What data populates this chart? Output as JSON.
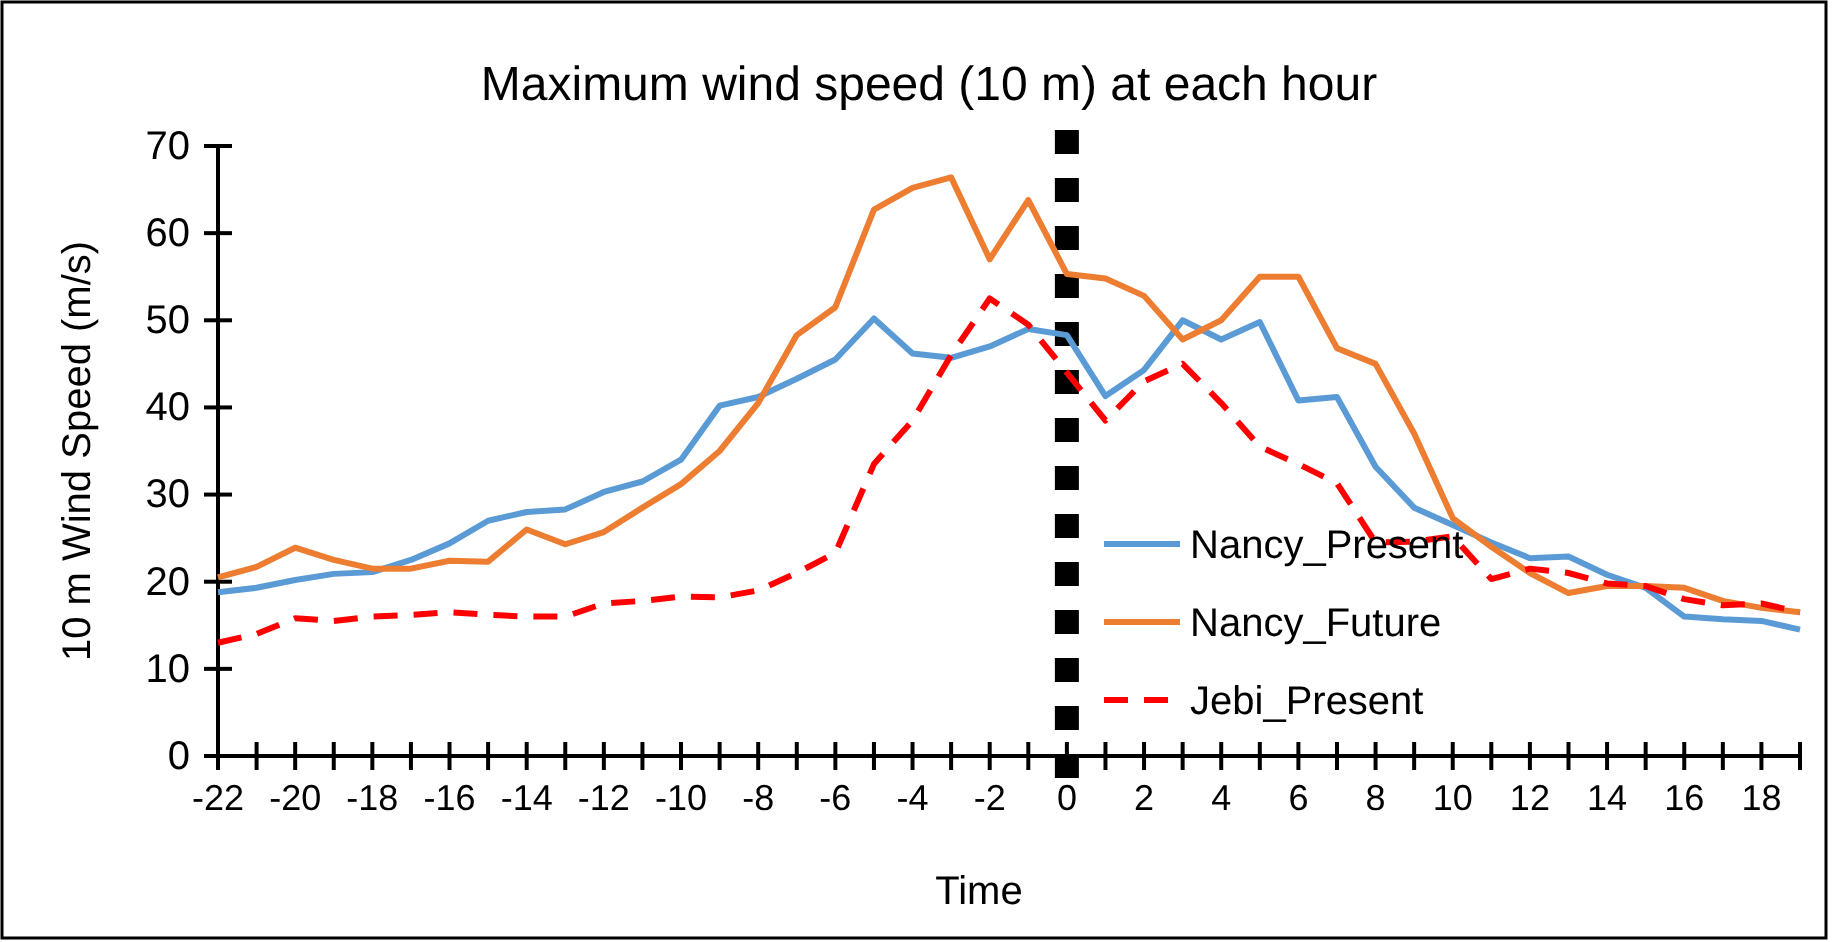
{
  "chart_data": {
    "type": "line",
    "title": "Maximum wind speed (10 m) at each hour",
    "xlabel": "Time",
    "ylabel": "10 m Wind Speed (m/s)",
    "x": [
      -22,
      -21,
      -20,
      -19,
      -18,
      -17,
      -16,
      -15,
      -14,
      -13,
      -12,
      -11,
      -10,
      -9,
      -8,
      -7,
      -6,
      -5,
      -4,
      -3,
      -2,
      -1,
      0,
      1,
      2,
      3,
      4,
      5,
      6,
      7,
      8,
      9,
      10,
      11,
      12,
      13,
      14,
      15,
      16,
      17,
      18,
      19
    ],
    "series": [
      {
        "name": "Nancy_Present",
        "color": "#5b9bd5",
        "line_style": "solid",
        "values": [
          18.8,
          19.3,
          20.2,
          20.9,
          21.1,
          22.5,
          24.4,
          27,
          28,
          28.3,
          30.3,
          31.5,
          34,
          40.2,
          41.2,
          43.3,
          45.5,
          50.2,
          46.2,
          45.7,
          47,
          49,
          48.3,
          41.3,
          44.3,
          50,
          47.8,
          49.8,
          40.8,
          41.2,
          33.2,
          28.5,
          26.5,
          24.5,
          22.7,
          22.9,
          20.8,
          19.3,
          16,
          15.7,
          15.5,
          14.5
        ]
      },
      {
        "name": "Nancy_Future",
        "color": "#ed7d31",
        "line_style": "solid",
        "values": [
          20.5,
          21.7,
          23.9,
          22.5,
          21.5,
          21.5,
          22.4,
          22.3,
          26,
          24.3,
          25.7,
          28.5,
          31.2,
          35,
          40.5,
          48.3,
          51.5,
          62.7,
          65.2,
          66.4,
          57,
          63.8,
          55.3,
          54.8,
          52.8,
          47.8,
          50,
          55,
          55,
          46.8,
          45,
          37,
          27.3,
          24,
          21,
          18.7,
          19.5,
          19.5,
          19.3,
          17.8,
          17,
          16.5
        ]
      },
      {
        "name": "Jebi_Present",
        "color": "#ff0000",
        "line_style": "dashed",
        "values": [
          13,
          14,
          15.8,
          15.5,
          16,
          16.2,
          16.5,
          16.2,
          16,
          16,
          17.5,
          17.8,
          18.3,
          18.2,
          19,
          21,
          23.3,
          33.5,
          38.5,
          46,
          52.5,
          49.5,
          44,
          38.5,
          43,
          45,
          40.5,
          35.5,
          33.5,
          31.3,
          24.5,
          24.6,
          25.2,
          20.3,
          21.5,
          21,
          19.8,
          19.5,
          18,
          17.3,
          17.5,
          16.5
        ]
      }
    ],
    "xlim": [
      -22,
      19
    ],
    "xticks": [
      -22,
      {
        "value": -21,
        "label": null
      },
      -20,
      {
        "value": -19,
        "label": null
      },
      -18,
      {
        "value": -17,
        "label": null
      },
      -16,
      {
        "value": -15,
        "label": null
      },
      -14,
      {
        "value": -13,
        "label": null
      },
      -12,
      {
        "value": -11,
        "label": null
      },
      -10,
      {
        "value": -9,
        "label": null
      },
      -8,
      {
        "value": -7,
        "label": null
      },
      -6,
      {
        "value": -5,
        "label": null
      },
      -4,
      {
        "value": -3,
        "label": null
      },
      -2,
      {
        "value": -1,
        "label": null
      },
      0,
      {
        "value": 1,
        "label": null
      },
      2,
      {
        "value": 3,
        "label": null
      },
      4,
      {
        "value": 5,
        "label": null
      },
      6,
      {
        "value": 7,
        "label": null
      },
      8,
      {
        "value": 9,
        "label": null
      },
      10,
      {
        "value": 11,
        "label": null
      },
      12,
      {
        "value": 13,
        "label": null
      },
      14,
      {
        "value": 15,
        "label": null
      },
      16,
      {
        "value": 17,
        "label": null
      },
      18,
      {
        "value": 19,
        "label": null
      }
    ],
    "ylim": [
      0,
      70
    ],
    "yticks": [
      0,
      10,
      20,
      30,
      40,
      50,
      60,
      70
    ],
    "ref_lines": [
      {
        "axis": "x",
        "value": 0,
        "color": "#000000",
        "line_style": "dotted"
      }
    ],
    "grid": false,
    "legend": "bottom",
    "marker": "none"
  }
}
